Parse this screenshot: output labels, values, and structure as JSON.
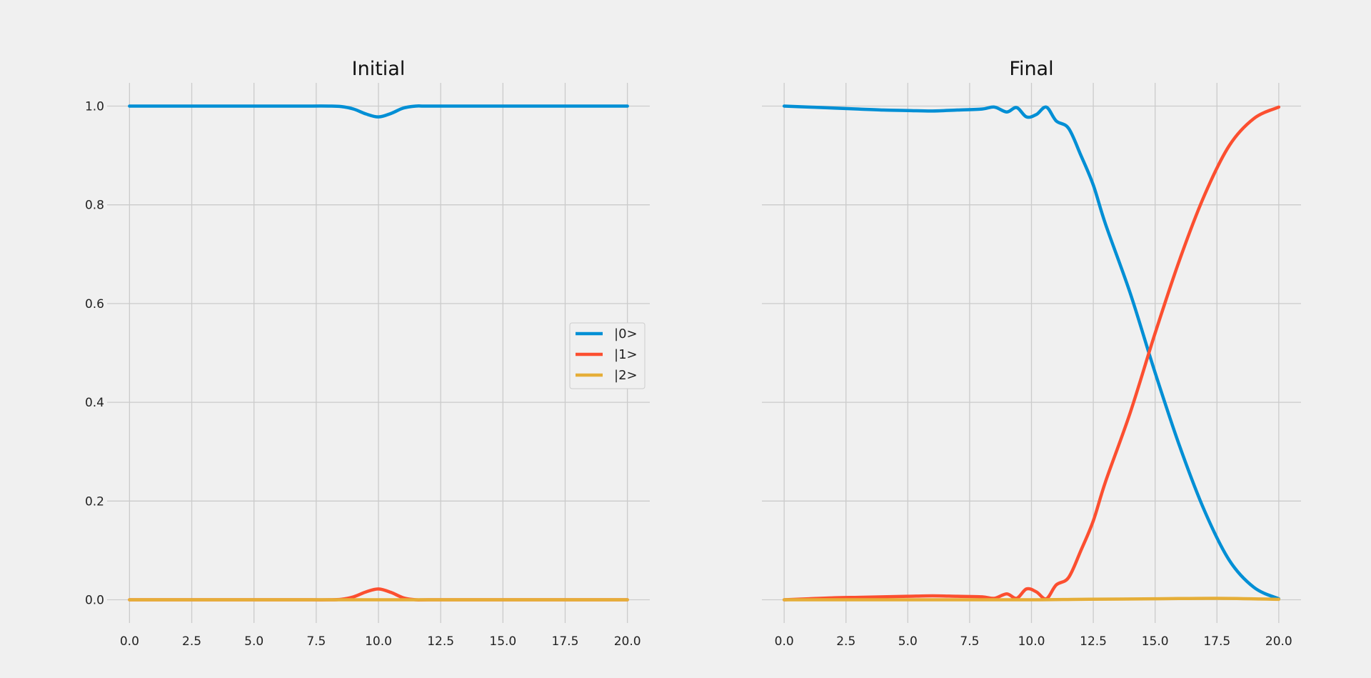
{
  "chart_data": [
    {
      "type": "line",
      "title": "Initial",
      "xlim": [
        -0.9,
        20.9
      ],
      "ylim": [
        -0.047,
        1.047
      ],
      "xticks": [
        "0.0",
        "2.5",
        "5.0",
        "7.5",
        "10.0",
        "12.5",
        "15.0",
        "17.5",
        "20.0"
      ],
      "yticks": [
        "0.0",
        "0.2",
        "0.4",
        "0.6",
        "0.8",
        "1.0"
      ],
      "grid": true,
      "legend": "center-right",
      "series": [
        {
          "name": "|0>",
          "color": "#008fd5",
          "x": [
            0,
            2,
            4,
            6,
            7,
            8,
            8.5,
            9,
            9.5,
            10,
            10.5,
            11,
            11.5,
            12,
            14,
            16,
            18,
            20
          ],
          "y": [
            1.0,
            1.0,
            1.0,
            1.0,
            1.0,
            1.0,
            0.999,
            0.994,
            0.984,
            0.978,
            0.985,
            0.996,
            1.0,
            1.0,
            1.0,
            1.0,
            1.0,
            1.0
          ]
        },
        {
          "name": "|1>",
          "color": "#fc4f30",
          "x": [
            0,
            2,
            4,
            6,
            7,
            8,
            8.5,
            9,
            9.5,
            10,
            10.5,
            11,
            11.5,
            12,
            14,
            16,
            18,
            20
          ],
          "y": [
            0.0,
            0.0,
            0.0,
            0.0,
            0.0,
            0.0,
            0.001,
            0.006,
            0.016,
            0.022,
            0.015,
            0.004,
            0.0,
            0.0,
            0.0,
            0.0,
            0.0,
            0.0
          ]
        },
        {
          "name": "|2>",
          "color": "#e5ae38",
          "x": [
            0,
            5,
            10,
            15,
            20
          ],
          "y": [
            0.0,
            0.0,
            0.0,
            0.0,
            0.0
          ]
        }
      ]
    },
    {
      "type": "line",
      "title": "Final",
      "xlim": [
        -0.9,
        20.9
      ],
      "ylim": [
        -0.047,
        1.047
      ],
      "xticks": [
        "0.0",
        "2.5",
        "5.0",
        "7.5",
        "10.0",
        "12.5",
        "15.0",
        "17.5",
        "20.0"
      ],
      "yticks": [
        "0.0",
        "0.2",
        "0.4",
        "0.6",
        "0.8",
        "1.0"
      ],
      "grid": true,
      "series": [
        {
          "name": "|0>",
          "color": "#008fd5",
          "x": [
            0,
            1,
            2,
            3,
            4,
            5,
            6,
            7,
            8,
            8.5,
            9,
            9.4,
            9.8,
            10.2,
            10.6,
            11,
            11.5,
            12,
            12.5,
            13,
            14,
            15,
            16,
            17,
            18,
            19,
            20
          ],
          "y": [
            1.0,
            0.998,
            0.996,
            0.994,
            0.992,
            0.991,
            0.99,
            0.992,
            0.994,
            0.998,
            0.988,
            0.997,
            0.978,
            0.983,
            0.998,
            0.97,
            0.955,
            0.9,
            0.84,
            0.76,
            0.62,
            0.46,
            0.31,
            0.18,
            0.08,
            0.025,
            0.002
          ]
        },
        {
          "name": "|1>",
          "color": "#fc4f30",
          "x": [
            0,
            1,
            2,
            3,
            4,
            5,
            6,
            7,
            8,
            8.5,
            9,
            9.4,
            9.8,
            10.2,
            10.6,
            11,
            11.5,
            12,
            12.5,
            13,
            14,
            15,
            16,
            17,
            18,
            19,
            20
          ],
          "y": [
            0.0,
            0.002,
            0.004,
            0.005,
            0.006,
            0.007,
            0.008,
            0.007,
            0.006,
            0.003,
            0.012,
            0.003,
            0.022,
            0.016,
            0.002,
            0.03,
            0.045,
            0.1,
            0.16,
            0.24,
            0.38,
            0.54,
            0.69,
            0.82,
            0.92,
            0.975,
            0.998
          ]
        },
        {
          "name": "|2>",
          "color": "#e5ae38",
          "x": [
            0,
            5,
            10,
            12,
            15,
            17.5,
            20
          ],
          "y": [
            0.0,
            0.0,
            0.0,
            0.001,
            0.002,
            0.003,
            0.001
          ]
        }
      ]
    }
  ]
}
